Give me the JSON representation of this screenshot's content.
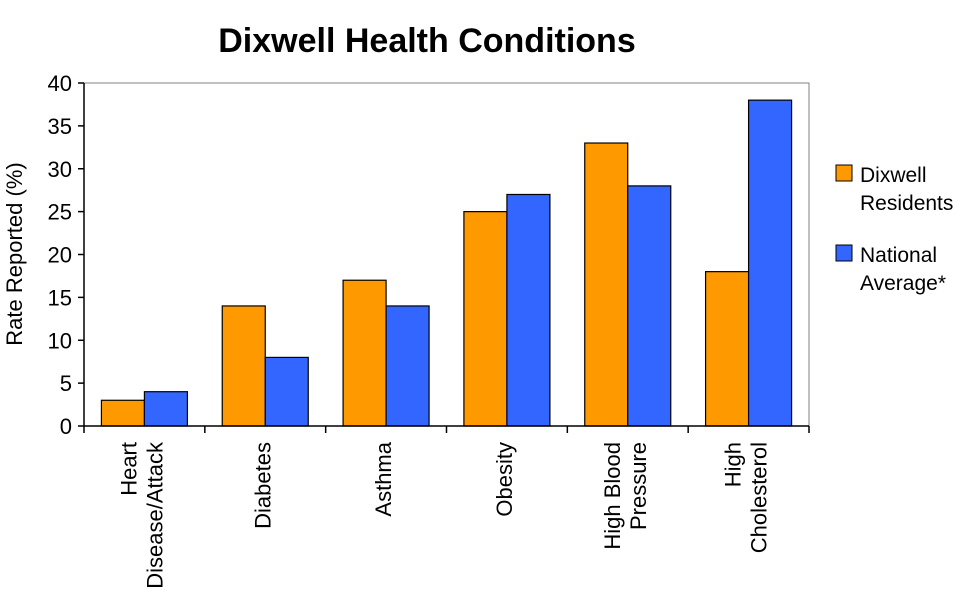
{
  "chart_data": {
    "type": "bar",
    "title": "Dixwell Health Conditions",
    "ylabel": "Rate Reported (%)",
    "xlabel": "",
    "ylim": [
      0,
      40
    ],
    "yticks": [
      0,
      5,
      10,
      15,
      20,
      25,
      30,
      35,
      40
    ],
    "grid": false,
    "legend_position": "right",
    "categories": [
      [
        "Heart",
        "Disease/Attack"
      ],
      [
        "Diabetes"
      ],
      [
        "Asthma"
      ],
      [
        "Obesity"
      ],
      [
        "High Blood",
        "Pressure"
      ],
      [
        "High",
        "Cholesterol"
      ]
    ],
    "series": [
      {
        "name": [
          "Dixwell",
          "Residents"
        ],
        "color": "#ff9900",
        "values": [
          3,
          14,
          17,
          25,
          33,
          18
        ]
      },
      {
        "name": [
          "National",
          "Average*"
        ],
        "color": "#3366ff",
        "values": [
          4,
          8,
          14,
          27,
          28,
          38
        ]
      }
    ]
  }
}
